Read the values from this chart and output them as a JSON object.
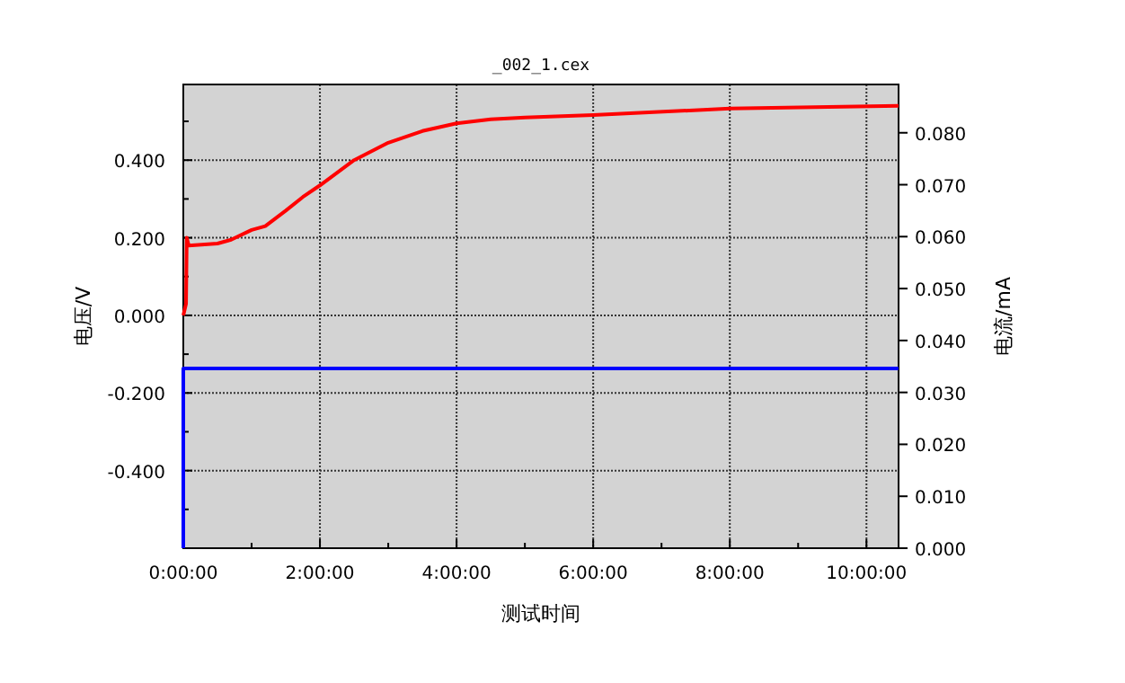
{
  "chart_data": {
    "type": "line",
    "title": "_002_1.cex",
    "xlabel": "测试时间",
    "ylabel": "电压/V",
    "y2label": "电流/mA",
    "xlim": [
      0,
      10.47
    ],
    "xticks": [
      {
        "value": 0,
        "label": "0:00:00"
      },
      {
        "value": 2,
        "label": "2:00:00"
      },
      {
        "value": 4,
        "label": "4:00:00"
      },
      {
        "value": 6,
        "label": "6:00:00"
      },
      {
        "value": 8,
        "label": "8:00:00"
      },
      {
        "value": 10,
        "label": "10:00:00"
      }
    ],
    "ylim": [
      -0.6,
      0.595
    ],
    "yticks": [
      {
        "value": -0.4,
        "label": "-0.400"
      },
      {
        "value": -0.2,
        "label": "-0.200"
      },
      {
        "value": 0,
        "label": "0.000"
      },
      {
        "value": 0.2,
        "label": "0.200"
      },
      {
        "value": 0.4,
        "label": "0.400"
      }
    ],
    "y2lim": [
      0,
      0.0893
    ],
    "y2ticks": [
      {
        "value": 0,
        "label": "0.000"
      },
      {
        "value": 0.01,
        "label": "0.010"
      },
      {
        "value": 0.02,
        "label": "0.020"
      },
      {
        "value": 0.03,
        "label": "0.030"
      },
      {
        "value": 0.04,
        "label": "0.040"
      },
      {
        "value": 0.05,
        "label": "0.050"
      },
      {
        "value": 0.06,
        "label": "0.060"
      },
      {
        "value": 0.07,
        "label": "0.070"
      },
      {
        "value": 0.08,
        "label": "0.080"
      }
    ],
    "grid": true,
    "line_style": "solid",
    "marker": "none",
    "series": [
      {
        "color": "#ff0000",
        "x": [
          0,
          0.04,
          0.05,
          0.08,
          0.5,
          0.7,
          1,
          1.2,
          1.5,
          1.75,
          2,
          2.5,
          3,
          3.5,
          4,
          4.5,
          5,
          6,
          8,
          10.47
        ],
        "values": [
          0.0,
          0.03,
          0.2,
          0.18,
          0.185,
          0.195,
          0.22,
          0.23,
          0.27,
          0.305,
          0.335,
          0.4,
          0.445,
          0.475,
          0.495,
          0.505,
          0.51,
          0.516,
          0.533,
          0.54
        ]
      },
      {
        "color": "#0000ff",
        "axis": "y2",
        "x": [
          0,
          0,
          10.47
        ],
        "values": [
          0,
          0.0346,
          0.0346
        ]
      }
    ]
  }
}
